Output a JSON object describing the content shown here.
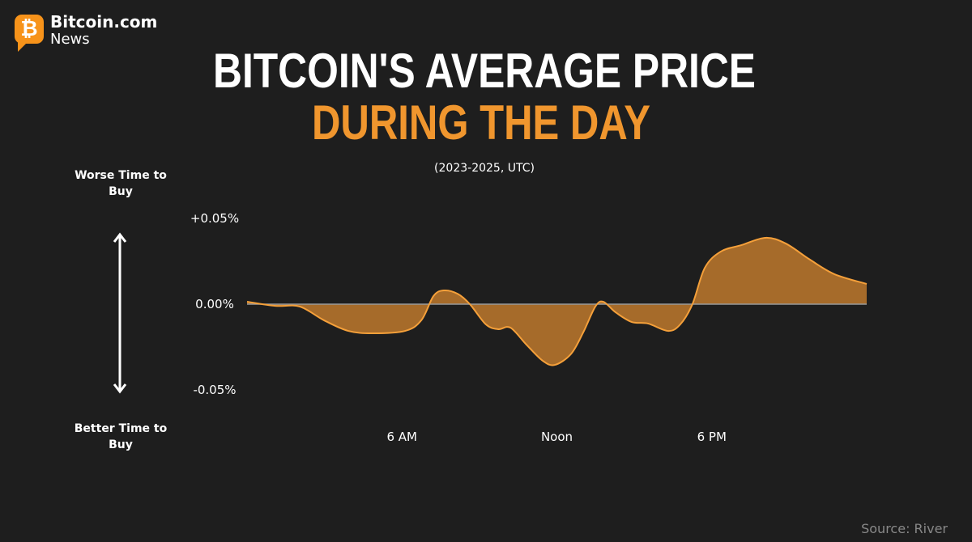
{
  "brand": {
    "name": "Bitcoin.com",
    "sub": "News"
  },
  "chart_data": {
    "type": "area",
    "title": "BITCOIN'S AVERAGE PRICE",
    "title_line2": "DURING THE DAY",
    "subtitle": "(2023-2025, UTC)",
    "annotations": [
      "Worse Time to Buy",
      "Better Time to Buy"
    ],
    "source": "Source: River",
    "color": "#f5a03a",
    "fill": "#a66b2a",
    "x": [
      0,
      1.1,
      2.04,
      2.98,
      3.92,
      4.86,
      6.12,
      6.75,
      7.22,
      7.62,
      8.16,
      8.63,
      9.25,
      9.73,
      10.2,
      10.82,
      11.45,
      11.92,
      12.55,
      13.02,
      13.49,
      13.8,
      14.27,
      14.9,
      15.53,
      16.31,
      16.78,
      17.25,
      17.73,
      18.35,
      19.14,
      20.08,
      20.86,
      21.8,
      22.75,
      24
    ],
    "values": [
      0.0014,
      -0.001,
      -0.0014,
      -0.0094,
      -0.0156,
      -0.017,
      -0.0156,
      -0.0094,
      0.0047,
      0.008,
      0.006,
      0,
      -0.0118,
      -0.0146,
      -0.0137,
      -0.0236,
      -0.033,
      -0.0354,
      -0.029,
      -0.0165,
      -0.0014,
      0.0014,
      -0.0047,
      -0.0104,
      -0.0113,
      -0.0156,
      -0.0118,
      0,
      0.0212,
      0.0307,
      0.0344,
      0.0387,
      0.0354,
      0.026,
      0.0175,
      0.0118
    ],
    "xlim": [
      0,
      24
    ],
    "xticks": [
      {
        "value": 6,
        "label": "6 AM"
      },
      {
        "value": 12,
        "label": "Noon"
      },
      {
        "value": 18,
        "label": "6 PM"
      }
    ],
    "ylim": [
      -0.05,
      0.05
    ],
    "yticks": [
      {
        "value": 0.05,
        "label": "+0.05%"
      },
      {
        "value": 0,
        "label": "0.00%"
      },
      {
        "value": -0.05,
        "label": "-0.05%"
      }
    ]
  }
}
